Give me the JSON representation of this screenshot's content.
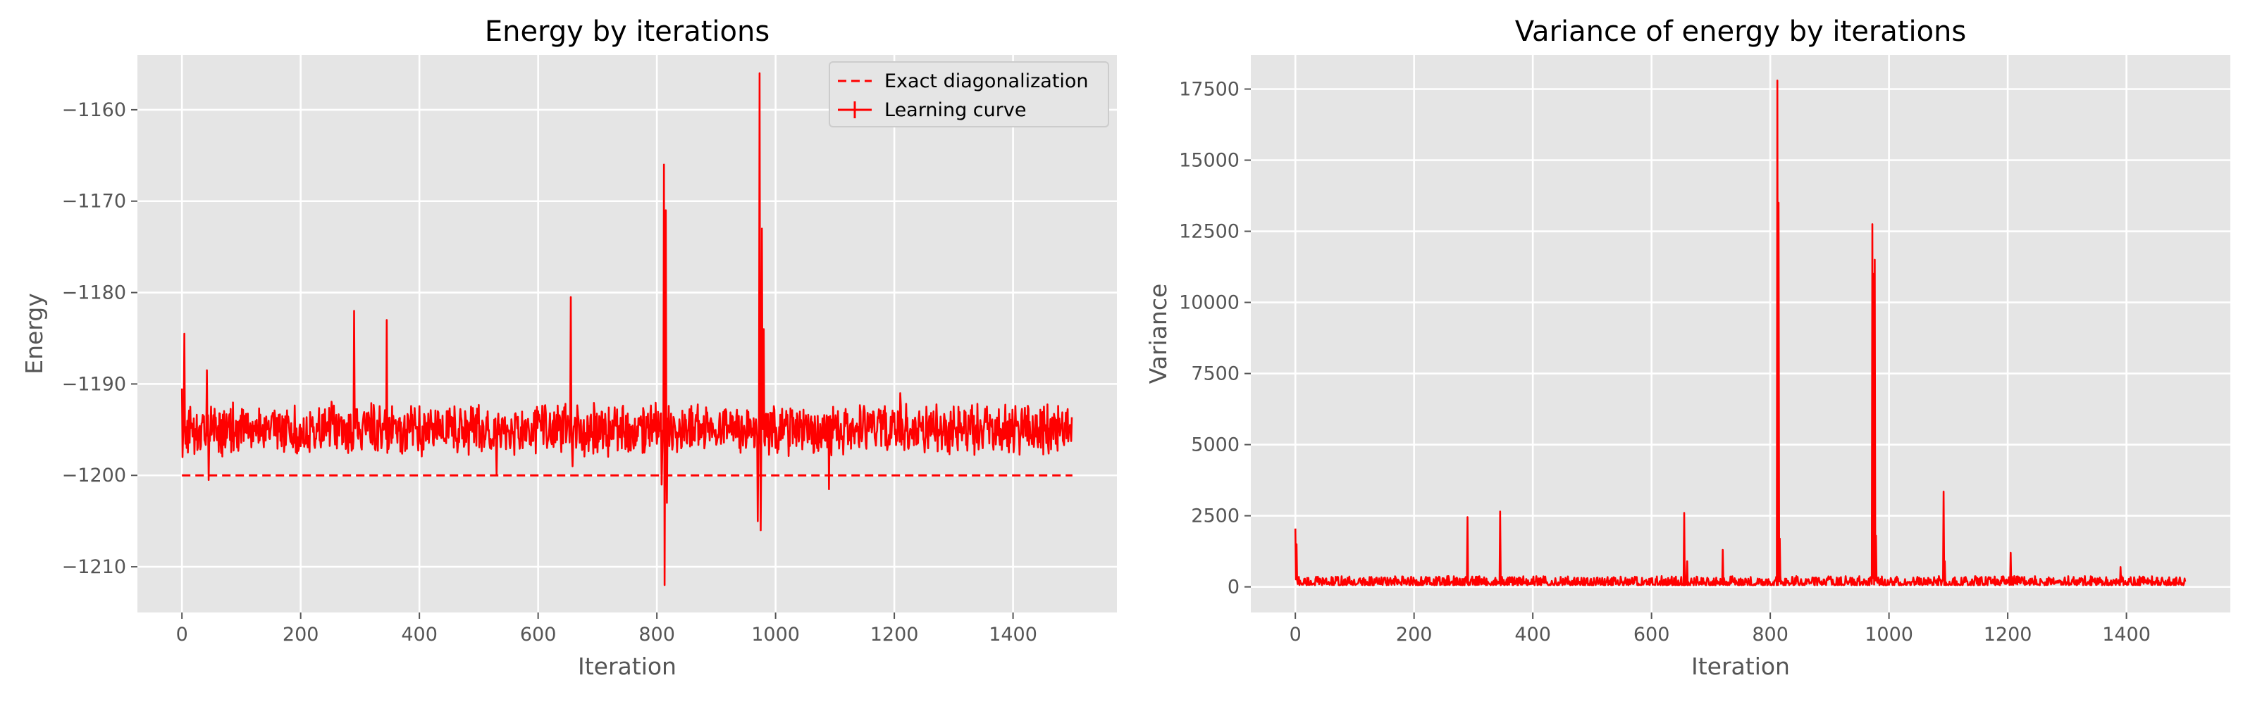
{
  "chart_data": [
    {
      "type": "line",
      "title": "Energy by iterations",
      "xlabel": "Iteration",
      "ylabel": "Energy",
      "xlim": [
        -75,
        1575
      ],
      "ylim": [
        -1215,
        -1154
      ],
      "xticks": [
        0,
        200,
        400,
        600,
        800,
        1000,
        1200,
        1400
      ],
      "yticks": [
        -1210,
        -1200,
        -1190,
        -1180,
        -1170,
        -1160
      ],
      "ytick_labels": [
        "−1210",
        "−1200",
        "−1190",
        "−1180",
        "−1170",
        "−1160"
      ],
      "grid": true,
      "legend": {
        "position": "top-right",
        "entries": [
          "Exact diagonalization",
          "Learning curve"
        ]
      },
      "series": [
        {
          "name": "Exact diagonalization",
          "style": "dashed",
          "color": "#ff0000",
          "x": [
            0,
            1500
          ],
          "y": [
            -1200,
            -1200
          ]
        },
        {
          "name": "Learning curve",
          "style": "solid",
          "color": "#ff0000",
          "n_points": 1500,
          "baseline": -1195,
          "noise_amplitude": 2.2,
          "spikes": [
            {
              "x": 0,
              "y": -1190.5
            },
            {
              "x": 1,
              "y": -1198
            },
            {
              "x": 4,
              "y": -1184.5
            },
            {
              "x": 8,
              "y": -1197
            },
            {
              "x": 42,
              "y": -1188.5
            },
            {
              "x": 45,
              "y": -1200.5
            },
            {
              "x": 290,
              "y": -1182
            },
            {
              "x": 345,
              "y": -1183
            },
            {
              "x": 530,
              "y": -1200
            },
            {
              "x": 655,
              "y": -1180.5
            },
            {
              "x": 658,
              "y": -1199
            },
            {
              "x": 808,
              "y": -1201
            },
            {
              "x": 812,
              "y": -1166
            },
            {
              "x": 813,
              "y": -1212
            },
            {
              "x": 815,
              "y": -1171
            },
            {
              "x": 817,
              "y": -1203
            },
            {
              "x": 970,
              "y": -1205
            },
            {
              "x": 973,
              "y": -1156
            },
            {
              "x": 975,
              "y": -1206
            },
            {
              "x": 977,
              "y": -1173
            },
            {
              "x": 980,
              "y": -1184
            },
            {
              "x": 1090,
              "y": -1201.5
            },
            {
              "x": 1210,
              "y": -1191
            }
          ]
        }
      ]
    },
    {
      "type": "line",
      "title": "Variance of energy by iterations",
      "xlabel": "Iteration",
      "ylabel": "Variance",
      "xlim": [
        -75,
        1575
      ],
      "ylim": [
        -900,
        18700
      ],
      "xticks": [
        0,
        200,
        400,
        600,
        800,
        1000,
        1200,
        1400
      ],
      "yticks": [
        0,
        2500,
        5000,
        7500,
        10000,
        12500,
        15000,
        17500
      ],
      "grid": true,
      "series": [
        {
          "color": "#ff0000",
          "n_points": 1500,
          "baseline": 140,
          "noise_amplitude": 200,
          "spikes": [
            {
              "x": 0,
              "y": 2050
            },
            {
              "x": 2,
              "y": 1500
            },
            {
              "x": 6,
              "y": 350
            },
            {
              "x": 290,
              "y": 2450
            },
            {
              "x": 345,
              "y": 2650
            },
            {
              "x": 655,
              "y": 2600
            },
            {
              "x": 660,
              "y": 900
            },
            {
              "x": 720,
              "y": 1300
            },
            {
              "x": 812,
              "y": 17800
            },
            {
              "x": 814,
              "y": 13500
            },
            {
              "x": 816,
              "y": 1700
            },
            {
              "x": 972,
              "y": 12750
            },
            {
              "x": 974,
              "y": 11000
            },
            {
              "x": 976,
              "y": 11500
            },
            {
              "x": 978,
              "y": 1800
            },
            {
              "x": 1092,
              "y": 3350
            },
            {
              "x": 1094,
              "y": 900
            },
            {
              "x": 1205,
              "y": 1200
            },
            {
              "x": 1390,
              "y": 700
            }
          ]
        }
      ]
    }
  ]
}
